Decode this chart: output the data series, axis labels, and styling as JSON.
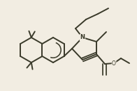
{
  "bg_color": "#f2ede2",
  "bond_color": "#3a3a2a",
  "line_width": 1.4,
  "figsize": [
    1.96,
    1.31
  ],
  "dpi": 100,
  "xlim": [
    0,
    196
  ],
  "ylim": [
    0,
    131
  ]
}
